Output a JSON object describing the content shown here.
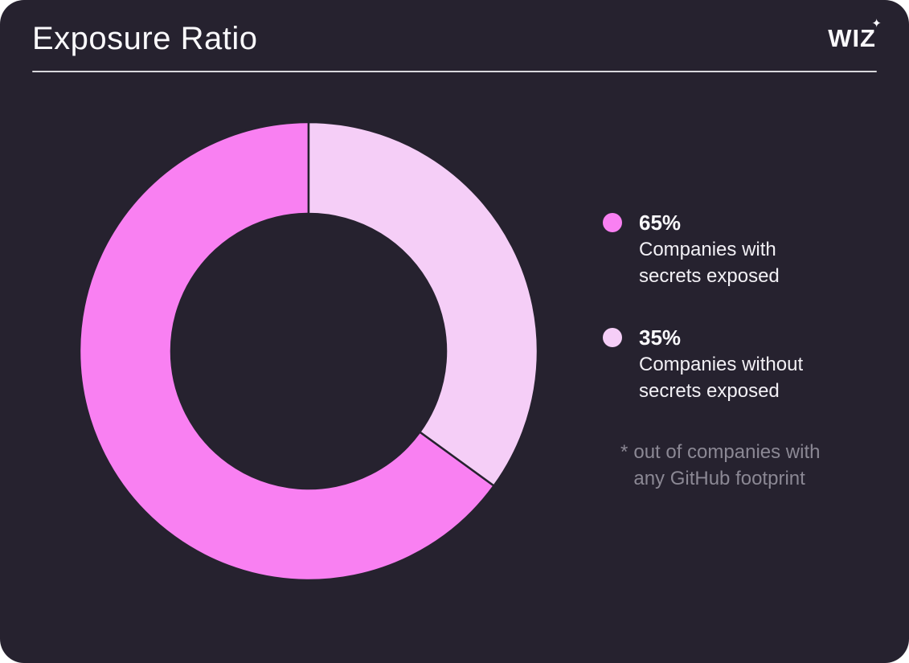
{
  "header": {
    "title": "Exposure Ratio",
    "brand": {
      "name": "WIZ",
      "sparkle_icon": "✦"
    }
  },
  "chart_data": {
    "type": "pie",
    "subtype": "donut",
    "title": "Exposure Ratio",
    "segments": [
      {
        "label": "Companies with secrets exposed",
        "value": 65,
        "color": "#F980F2"
      },
      {
        "label": "Companies without secrets exposed",
        "value": 35,
        "color": "#F5CEF7"
      }
    ],
    "start_angle_deg": 126,
    "direction": "clockwise",
    "inner_radius_ratio": 0.6,
    "separator_color": "#26222F",
    "legend_position": "right",
    "footnote": "* out of companies with any GitHub footprint"
  },
  "legend": {
    "items": [
      {
        "percent": "65%",
        "lines": [
          "Companies with",
          "secrets exposed"
        ]
      },
      {
        "percent": "35%",
        "lines": [
          "Companies without",
          "secrets exposed"
        ]
      }
    ]
  },
  "footnote": {
    "marker": "*",
    "lines": [
      "out of companies with",
      "any GitHub footprint"
    ]
  },
  "theme": {
    "page_background": "#FFFFFF",
    "card_background": "#26222F",
    "title_color": "#FAF9FC",
    "text_color": "#F2F0F5",
    "muted_color": "#8B8894",
    "divider_color": "#D9D8DC"
  }
}
